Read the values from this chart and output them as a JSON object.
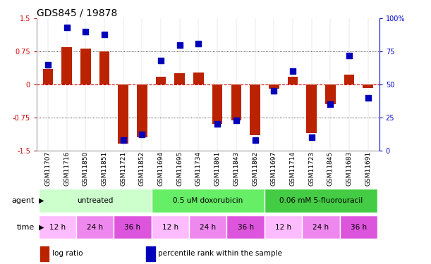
{
  "title": "GDS845 / 19878",
  "samples": [
    "GSM11707",
    "GSM11716",
    "GSM11850",
    "GSM11851",
    "GSM11721",
    "GSM11852",
    "GSM11694",
    "GSM11695",
    "GSM11734",
    "GSM11861",
    "GSM11843",
    "GSM11862",
    "GSM11697",
    "GSM11714",
    "GSM11723",
    "GSM11845",
    "GSM11683",
    "GSM11691"
  ],
  "log_ratio": [
    0.35,
    0.85,
    0.82,
    0.75,
    -1.35,
    -1.2,
    0.18,
    0.25,
    0.28,
    -0.9,
    -0.82,
    -1.15,
    -0.1,
    0.18,
    -1.1,
    -0.45,
    0.22,
    -0.08
  ],
  "percentile": [
    65,
    93,
    90,
    88,
    8,
    12,
    68,
    80,
    81,
    20,
    23,
    8,
    45,
    60,
    10,
    35,
    72,
    40
  ],
  "ylim_left": [
    -1.5,
    1.5
  ],
  "ylim_right": [
    0,
    100
  ],
  "yticks_left": [
    -1.5,
    -0.75,
    0,
    0.75,
    1.5
  ],
  "yticks_right": [
    0,
    25,
    50,
    75,
    100
  ],
  "ytick_labels_left": [
    "-1.5",
    "-0.75",
    "0",
    "0.75",
    "1.5"
  ],
  "ytick_labels_right": [
    "0",
    "25",
    "50",
    "75",
    "100%"
  ],
  "hlines_dotted": [
    0.75,
    -0.75
  ],
  "bar_color": "#BB2200",
  "dot_color": "#0000BB",
  "zero_line_color": "#CC0000",
  "agent_groups": [
    {
      "label": "untreated",
      "start": 0,
      "end": 6,
      "color": "#CCFFCC"
    },
    {
      "label": "0.5 uM doxorubicin",
      "start": 6,
      "end": 12,
      "color": "#66EE66"
    },
    {
      "label": "0.06 mM 5-fluorouracil",
      "start": 12,
      "end": 18,
      "color": "#44CC44"
    }
  ],
  "time_groups": [
    {
      "label": "12 h",
      "start": 0,
      "end": 2,
      "color": "#FFBBFF"
    },
    {
      "label": "24 h",
      "start": 2,
      "end": 4,
      "color": "#EE88EE"
    },
    {
      "label": "36 h",
      "start": 4,
      "end": 6,
      "color": "#DD55DD"
    },
    {
      "label": "12 h",
      "start": 6,
      "end": 8,
      "color": "#FFBBFF"
    },
    {
      "label": "24 h",
      "start": 8,
      "end": 10,
      "color": "#EE88EE"
    },
    {
      "label": "36 h",
      "start": 10,
      "end": 12,
      "color": "#DD55DD"
    },
    {
      "label": "12 h",
      "start": 12,
      "end": 14,
      "color": "#FFBBFF"
    },
    {
      "label": "24 h",
      "start": 14,
      "end": 16,
      "color": "#EE88EE"
    },
    {
      "label": "36 h",
      "start": 16,
      "end": 18,
      "color": "#DD55DD"
    }
  ],
  "legend_items": [
    {
      "label": "log ratio",
      "color": "#BB2200"
    },
    {
      "label": "percentile rank within the sample",
      "color": "#0000BB"
    }
  ],
  "bar_width": 0.55,
  "dot_size": 28,
  "left_axis_color": "#CC0000",
  "right_axis_color": "#0000CC",
  "title_fontsize": 10,
  "tick_fontsize": 7,
  "label_fontsize": 8,
  "sample_fontsize": 6.5,
  "row_fontsize": 8
}
